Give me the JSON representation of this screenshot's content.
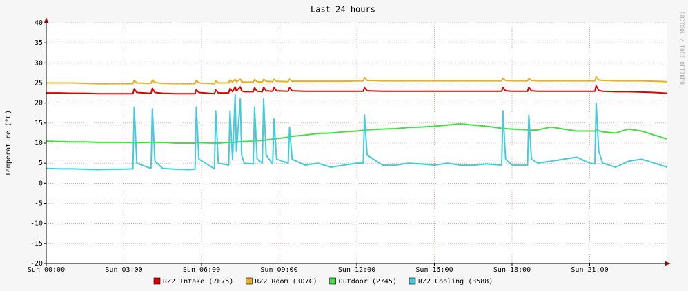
{
  "chart_data": {
    "type": "line",
    "title": "Last 24 hours",
    "y_label": "Temperature (°C)",
    "watermark": "RRDTOOL / TOBI OETIKER",
    "grid": true,
    "xlim": [
      0,
      24
    ],
    "xticks": [
      {
        "value": 0,
        "label": "Sun 00:00"
      },
      {
        "value": 3,
        "label": "Sun 03:00"
      },
      {
        "value": 6,
        "label": "Sun 06:00"
      },
      {
        "value": 9,
        "label": "Sun 09:00"
      },
      {
        "value": 12,
        "label": "Sun 12:00"
      },
      {
        "value": 15,
        "label": "Sun 15:00"
      },
      {
        "value": 18,
        "label": "Sun 18:00"
      },
      {
        "value": 21,
        "label": "Sun 21:00"
      }
    ],
    "ylim": [
      -20,
      40
    ],
    "yticks": [
      -20,
      -15,
      -10,
      -5,
      0,
      5,
      10,
      15,
      20,
      25,
      30,
      35,
      40
    ],
    "x": [
      0,
      0.5,
      1,
      1.5,
      2,
      2.5,
      3,
      3.35,
      3.4,
      3.5,
      4.0,
      4.05,
      4.1,
      4.2,
      4.5,
      5,
      5.5,
      5.75,
      5.8,
      5.9,
      6.5,
      6.55,
      6.65,
      7.05,
      7.1,
      7.2,
      7.3,
      7.35,
      7.5,
      7.55,
      7.65,
      8.0,
      8.05,
      8.15,
      8.35,
      8.4,
      8.5,
      8.75,
      8.8,
      8.9,
      9.35,
      9.4,
      9.5,
      10,
      10.5,
      11,
      11.5,
      12,
      12.25,
      12.3,
      12.4,
      13,
      13.5,
      14,
      14.5,
      15,
      15.5,
      16,
      16.5,
      17,
      17.6,
      17.65,
      17.75,
      18,
      18.6,
      18.65,
      18.75,
      19,
      19.5,
      20,
      20.5,
      21,
      21.2,
      21.25,
      21.35,
      21.5,
      22,
      22.5,
      23,
      23.5,
      24
    ],
    "series": [
      {
        "name": "RZ2 Intake (7F75)",
        "color": "#e00000",
        "values": [
          22.5,
          22.5,
          22.4,
          22.4,
          22.3,
          22.3,
          22.3,
          22.3,
          23.5,
          22.6,
          22.4,
          22.4,
          23.6,
          22.6,
          22.4,
          22.3,
          22.3,
          22.3,
          23.3,
          22.6,
          22.3,
          23.2,
          22.5,
          22.5,
          23.6,
          22.8,
          24,
          23,
          24,
          23,
          22.8,
          22.8,
          23.8,
          22.9,
          22.8,
          23.9,
          23,
          22.9,
          23.8,
          23,
          22.9,
          23.8,
          23,
          22.9,
          22.9,
          22.9,
          22.9,
          22.9,
          22.9,
          23.8,
          23,
          22.9,
          22.9,
          22.9,
          22.9,
          22.9,
          22.9,
          22.9,
          22.9,
          22.9,
          22.9,
          23.8,
          23,
          22.9,
          22.9,
          23.9,
          23,
          22.9,
          22.9,
          22.9,
          22.9,
          22.9,
          22.9,
          24.3,
          23.1,
          22.9,
          22.8,
          22.8,
          22.7,
          22.6,
          22.4
        ]
      },
      {
        "name": "RZ2 Room (3D7C)",
        "color": "#e8b020",
        "values": [
          25,
          25,
          25,
          24.9,
          24.8,
          24.8,
          24.8,
          24.8,
          25.6,
          25,
          24.9,
          24.9,
          25.7,
          25.1,
          24.9,
          24.8,
          24.8,
          24.8,
          25.6,
          25,
          24.8,
          25.5,
          25,
          25,
          25.7,
          25.2,
          25.9,
          25.3,
          25.9,
          25.3,
          25.2,
          25.2,
          25.8,
          25.3,
          25.2,
          25.9,
          25.4,
          25.3,
          25.9,
          25.4,
          25.3,
          25.9,
          25.4,
          25.4,
          25.4,
          25.4,
          25.4,
          25.5,
          25.5,
          26.3,
          25.6,
          25.5,
          25.5,
          25.5,
          25.5,
          25.5,
          25.5,
          25.5,
          25.5,
          25.5,
          25.5,
          26.1,
          25.6,
          25.5,
          25.5,
          26.1,
          25.6,
          25.5,
          25.5,
          25.5,
          25.5,
          25.5,
          25.5,
          26.5,
          25.7,
          25.6,
          25.5,
          25.5,
          25.5,
          25.4,
          25.3
        ]
      },
      {
        "name": "Outdoor (2745)",
        "color": "#44dd44",
        "values": [
          10.5,
          10.4,
          10.3,
          10.3,
          10.2,
          10.2,
          10.2,
          10.1,
          10.1,
          10.1,
          10.2,
          10.2,
          10.2,
          10.2,
          10.2,
          10.0,
          10.0,
          10.0,
          10.1,
          10.1,
          10.0,
          10.0,
          10.0,
          10.2,
          10.2,
          10.2,
          10.2,
          10.3,
          10.3,
          10.3,
          10.4,
          10.5,
          10.6,
          10.6,
          10.7,
          10.7,
          10.8,
          11.0,
          11.0,
          11.1,
          11.5,
          11.5,
          11.7,
          12.0,
          12.4,
          12.5,
          12.8,
          13.0,
          13.2,
          13.3,
          13.3,
          13.5,
          13.6,
          13.9,
          14.0,
          14.2,
          14.5,
          14.8,
          14.5,
          14.2,
          13.7,
          13.7,
          13.6,
          13.5,
          13.3,
          13.3,
          13.2,
          13.3,
          14,
          13.5,
          13,
          13,
          13,
          13.3,
          13.1,
          12.8,
          12.5,
          13.5,
          13,
          12,
          11
        ]
      },
      {
        "name": "RZ2 Cooling (3588)",
        "color": "#44ccdd",
        "values": [
          3.7,
          3.6,
          3.6,
          3.5,
          3.4,
          3.5,
          3.5,
          3.6,
          19,
          5,
          3.8,
          3.8,
          18.5,
          5.5,
          3.7,
          3.5,
          3.4,
          3.5,
          19,
          6,
          3.6,
          18,
          5,
          4.5,
          18,
          6,
          22,
          8,
          21,
          7,
          5,
          4.8,
          19,
          6,
          5,
          21,
          7,
          4.8,
          16,
          6,
          5,
          14,
          6,
          4.5,
          5,
          4,
          4.5,
          5,
          5,
          17,
          7,
          4.5,
          4.5,
          5,
          4.8,
          4.5,
          5,
          4.5,
          4.5,
          4.8,
          4.5,
          18,
          6,
          4.5,
          4.5,
          17,
          6,
          5,
          5.5,
          6,
          6.5,
          5,
          4.8,
          20,
          8,
          5,
          4,
          5.5,
          6,
          5,
          4
        ]
      }
    ]
  }
}
